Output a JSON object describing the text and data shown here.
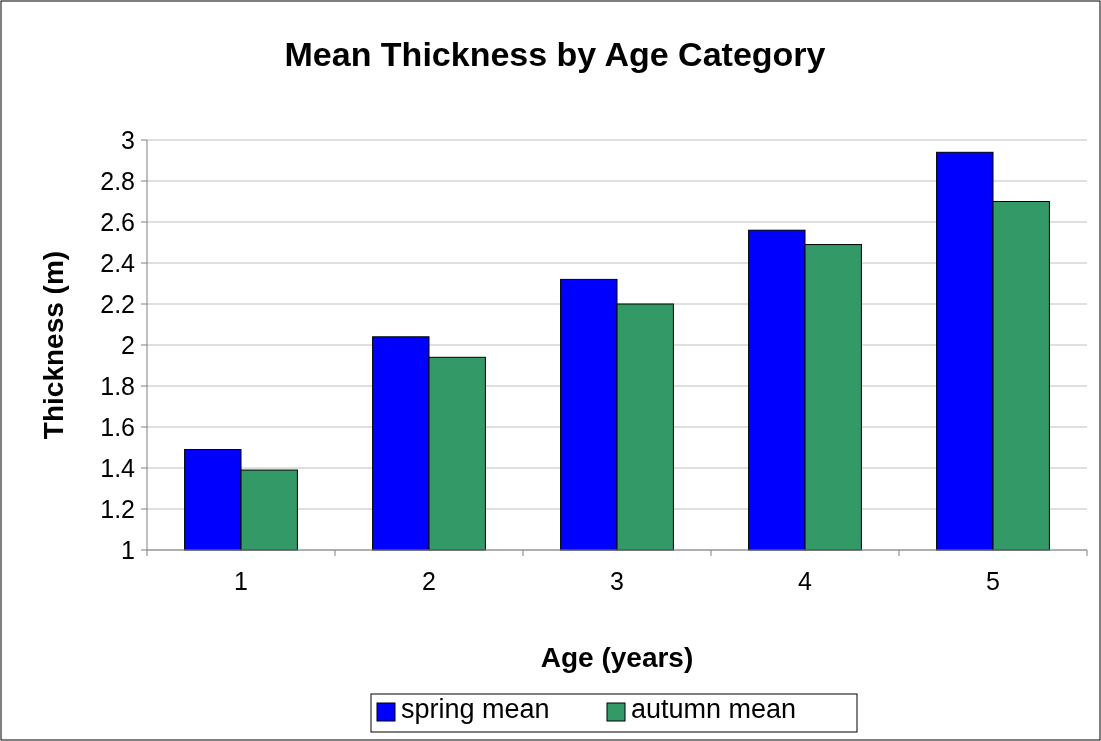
{
  "chart_data": {
    "type": "bar",
    "title": "Mean Thickness by Age Category",
    "xlabel": "Age (years)",
    "ylabel": "Thickness (m)",
    "categories": [
      "1",
      "2",
      "3",
      "4",
      "5"
    ],
    "series": [
      {
        "name": "spring mean",
        "color": "#0000ff",
        "values": [
          1.49,
          2.04,
          2.32,
          2.56,
          2.94
        ]
      },
      {
        "name": "autumn mean",
        "color": "#339966",
        "values": [
          1.39,
          1.94,
          2.2,
          2.49,
          2.7
        ]
      }
    ],
    "ylim": [
      1,
      3
    ],
    "yticks": [
      1,
      1.2,
      1.4,
      1.6,
      1.8,
      2,
      2.2,
      2.4,
      2.6,
      2.8,
      3
    ],
    "grid": "y",
    "legend": "bottom"
  }
}
